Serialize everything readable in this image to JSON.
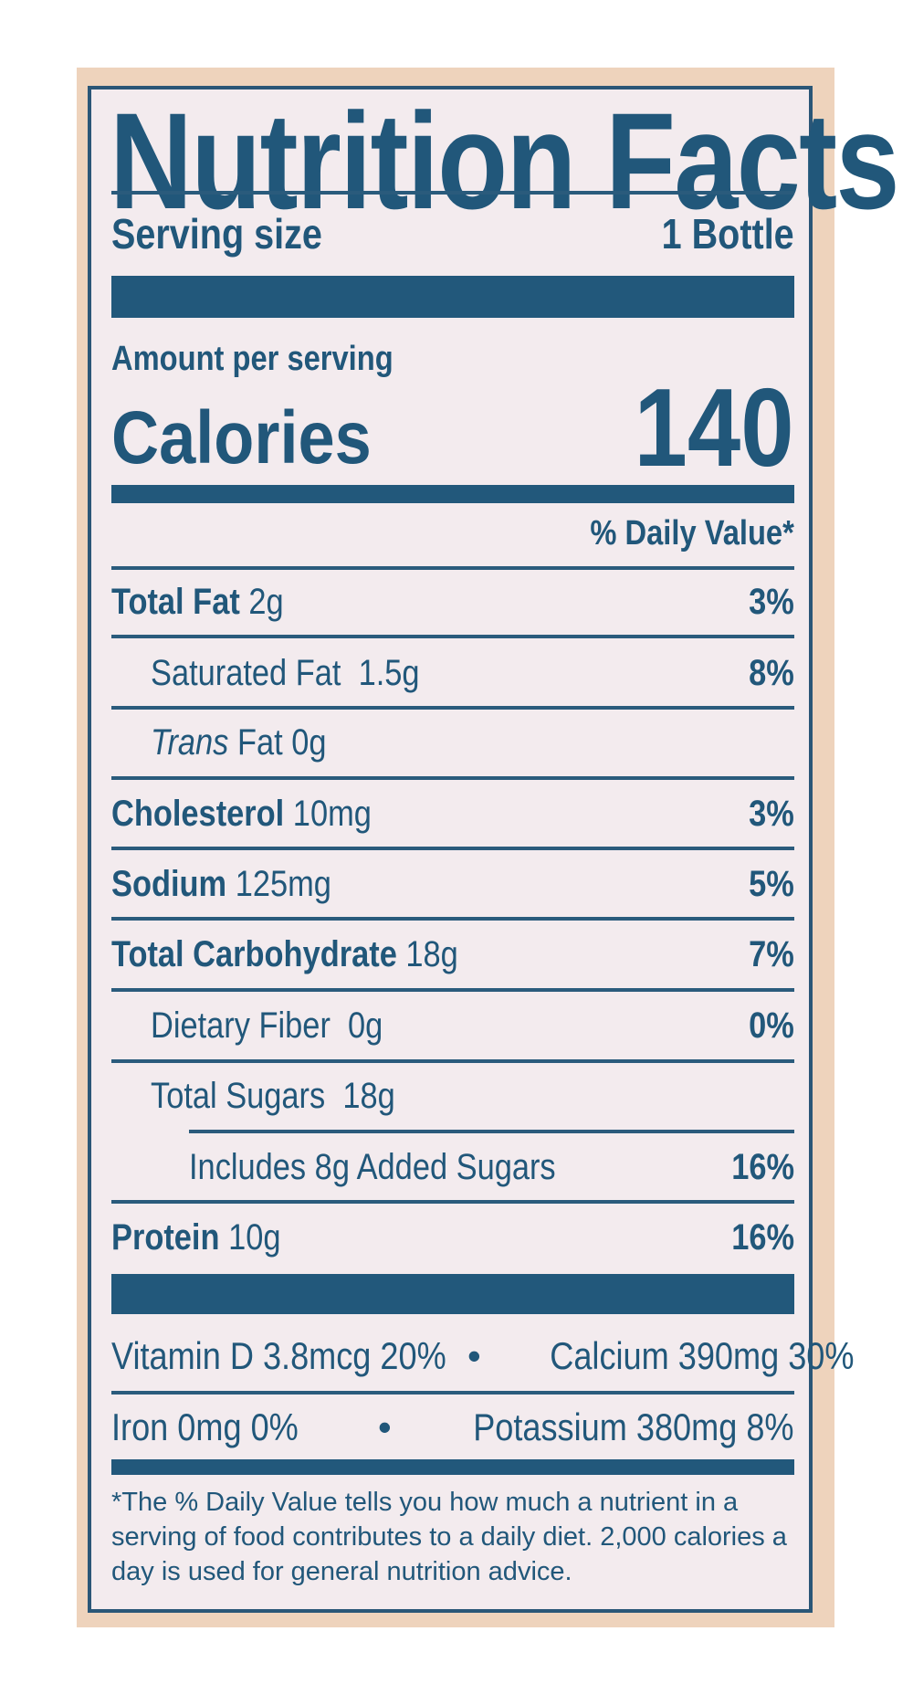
{
  "title": "Nutrition Facts",
  "serving": {
    "label": "Serving size",
    "value": "1 Bottle"
  },
  "amount_label": "Amount per serving",
  "calories": {
    "label": "Calories",
    "value": "140"
  },
  "dv_header": "% Daily Value*",
  "nutrients": [
    {
      "name": "Total Fat",
      "amount": "2g",
      "dv": "3%"
    },
    {
      "name": "Saturated Fat",
      "amount": "1.5g",
      "dv": "8%"
    },
    {
      "name_italic": "Trans",
      "name": "Fat",
      "amount": "0g",
      "dv": ""
    },
    {
      "name": "Cholesterol",
      "amount": "10mg",
      "dv": "3%"
    },
    {
      "name": "Sodium",
      "amount": "125mg",
      "dv": "5%"
    },
    {
      "name": "Total Carbohydrate",
      "amount": "18g",
      "dv": "7%"
    },
    {
      "name": "Dietary Fiber",
      "amount": "0g",
      "dv": "0%"
    },
    {
      "name": "Total Sugars",
      "amount": "18g",
      "dv": ""
    },
    {
      "name": "Includes 8g Added Sugars",
      "amount": "",
      "dv": "16%"
    },
    {
      "name": "Protein",
      "amount": "10g",
      "dv": "16%"
    }
  ],
  "micros": {
    "row1_left": "Vitamin D 3.8mcg 20%",
    "row1_sep": "•",
    "row1_right": "Calcium 390mg 30%",
    "row2_left": "Iron 0mg 0%",
    "row2_sep": "•",
    "row2_right": "Potassium 380mg 8%"
  },
  "footnote": "*The % Daily Value tells you how much a nutrient in a serving of food contributes to a daily diet. 2,000 calories a day is used for general nutrition advice.",
  "colors": {
    "ink": "#21577a",
    "background": "#f3ebee",
    "frame": "#eed3bc"
  }
}
